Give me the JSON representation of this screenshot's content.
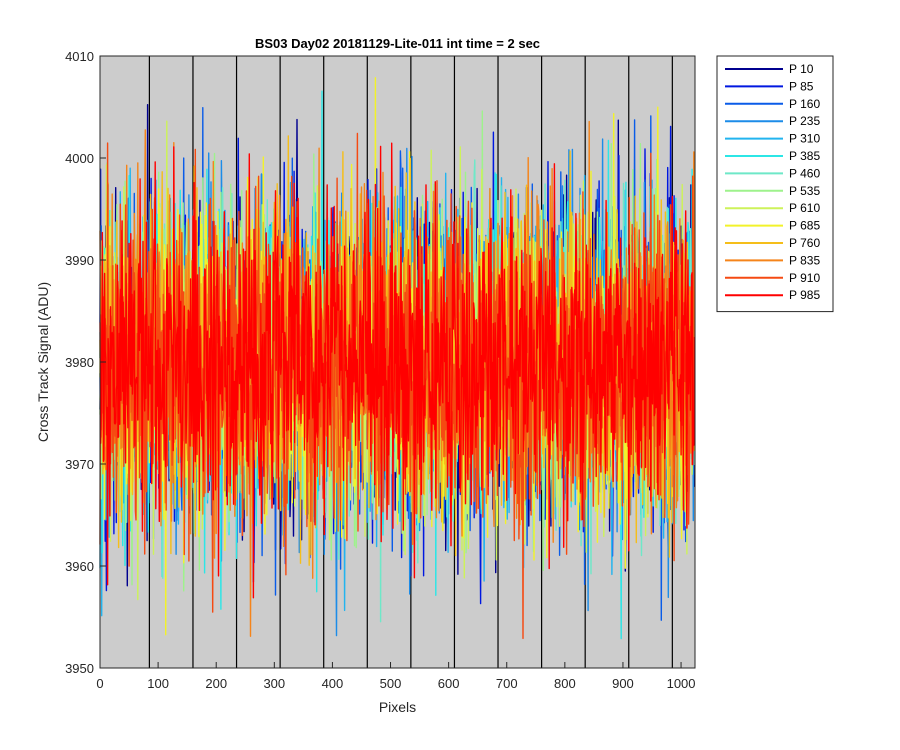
{
  "chart_data": {
    "type": "line",
    "title": "BS03 Day02 20181129-Lite-011 int time = 2 sec",
    "xlabel": "Pixels",
    "ylabel": "Cross Track Signal (ADU)",
    "xlim": [
      0,
      1024
    ],
    "ylim": [
      3950,
      4010
    ],
    "x_ticks": [
      "0",
      "100",
      "200",
      "300",
      "400",
      "500",
      "600",
      "700",
      "800",
      "900",
      "1000"
    ],
    "y_ticks": [
      "3950",
      "3960",
      "3970",
      "3980",
      "3990",
      "4000",
      "4010"
    ],
    "x_tick_values": [
      0,
      100,
      200,
      300,
      400,
      500,
      600,
      700,
      800,
      900,
      1000
    ],
    "y_tick_values": [
      3950,
      3960,
      3970,
      3980,
      3990,
      4000,
      4010
    ],
    "vertical_lines_at": [
      85,
      160,
      235,
      310,
      385,
      460,
      535,
      610,
      685,
      760,
      835,
      910,
      985
    ],
    "background_color": "#cccccc",
    "grid": false,
    "legend_position": "outside-top-right",
    "signal_mean": 3980,
    "signal_noise_sd": 7.5,
    "n_points": 1024,
    "series": [
      {
        "name": "P 10",
        "color": "#00008f"
      },
      {
        "name": "P 85",
        "color": "#0018e0"
      },
      {
        "name": "P 160",
        "color": "#0a5ce8"
      },
      {
        "name": "P 235",
        "color": "#1c8ce8"
      },
      {
        "name": "P 310",
        "color": "#22b4ef"
      },
      {
        "name": "P 385",
        "color": "#2ce6e6"
      },
      {
        "name": "P 460",
        "color": "#6ee8c8"
      },
      {
        "name": "P 535",
        "color": "#9ef28c"
      },
      {
        "name": "P 610",
        "color": "#cdf25a"
      },
      {
        "name": "P 685",
        "color": "#f2f22a"
      },
      {
        "name": "P 760",
        "color": "#f5be1a"
      },
      {
        "name": "P 835",
        "color": "#f5841a"
      },
      {
        "name": "P 910",
        "color": "#f54a12"
      },
      {
        "name": "P 985",
        "color": "#ff0000"
      }
    ]
  }
}
